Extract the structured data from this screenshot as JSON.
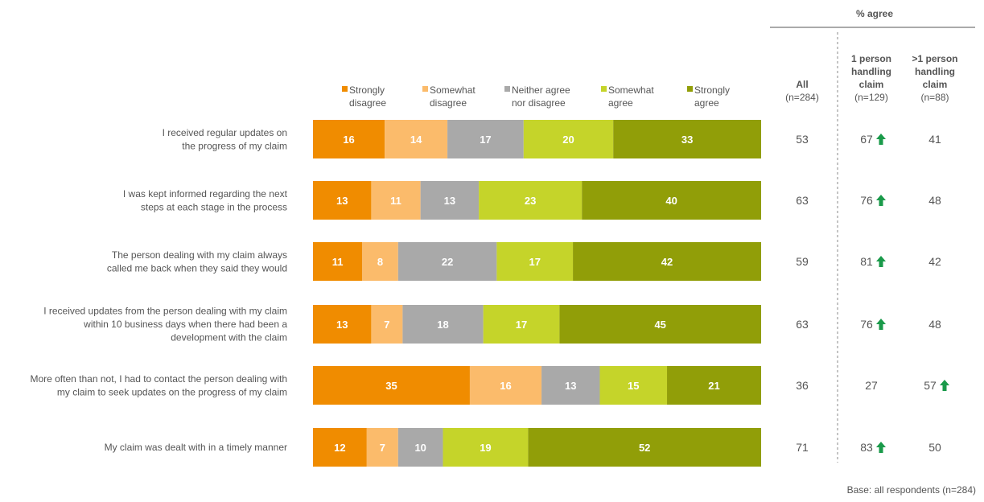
{
  "chart_data": {
    "type": "bar",
    "orientation": "horizontal",
    "stacked": true,
    "legend_position": "top",
    "categories": [
      [
        "I received regular updates on",
        "the progress of my claim"
      ],
      [
        "I was kept informed regarding the next",
        "steps at each stage in the process"
      ],
      [
        "The person dealing with my claim always",
        "called me back when they said they would"
      ],
      [
        "I received updates from the person dealing with my claim",
        "within 10 business days when there had been a",
        "development with the claim"
      ],
      [
        "More often than not, I had to contact the person dealing with",
        "my claim to seek updates on the progress of my claim"
      ],
      [
        "My claim was dealt with in a timely manner"
      ]
    ],
    "series": [
      {
        "name": [
          "Strongly",
          "disagree"
        ],
        "color": "#f08c00",
        "values": [
          16,
          13,
          11,
          13,
          35,
          12
        ]
      },
      {
        "name": [
          "Somewhat",
          "disagree"
        ],
        "color": "#fbbb6b",
        "values": [
          14,
          11,
          8,
          7,
          16,
          7
        ]
      },
      {
        "name": [
          "Neither agree",
          "nor disagree"
        ],
        "color": "#a9a9a9",
        "values": [
          17,
          13,
          22,
          18,
          13,
          10
        ]
      },
      {
        "name": [
          "Somewhat",
          "agree"
        ],
        "color": "#c5d42a",
        "values": [
          20,
          23,
          17,
          17,
          15,
          19
        ]
      },
      {
        "name": [
          "Strongly",
          "agree"
        ],
        "color": "#919e08",
        "values": [
          33,
          40,
          42,
          45,
          21,
          52
        ]
      }
    ],
    "agree_table": {
      "group_header": "% agree",
      "columns": [
        {
          "header": [
            "All",
            "(n=284)"
          ],
          "bold_lines": 1,
          "values": [
            53,
            63,
            59,
            63,
            36,
            71
          ],
          "up": [
            false,
            false,
            false,
            false,
            false,
            false
          ]
        },
        {
          "header": [
            "1 person",
            "handling",
            "claim",
            "(n=129)"
          ],
          "bold_lines": 3,
          "values": [
            67,
            76,
            81,
            76,
            27,
            83
          ],
          "up": [
            true,
            true,
            true,
            true,
            false,
            true
          ]
        },
        {
          "header": [
            ">1 person",
            "handling",
            "claim",
            "(n=88)"
          ],
          "bold_lines": 3,
          "values": [
            41,
            48,
            42,
            48,
            57,
            50
          ],
          "up": [
            false,
            false,
            false,
            false,
            true,
            false
          ]
        }
      ],
      "arrow_color": "#1a9a4a"
    },
    "footnote": "Base: all respondents (n=284)"
  }
}
